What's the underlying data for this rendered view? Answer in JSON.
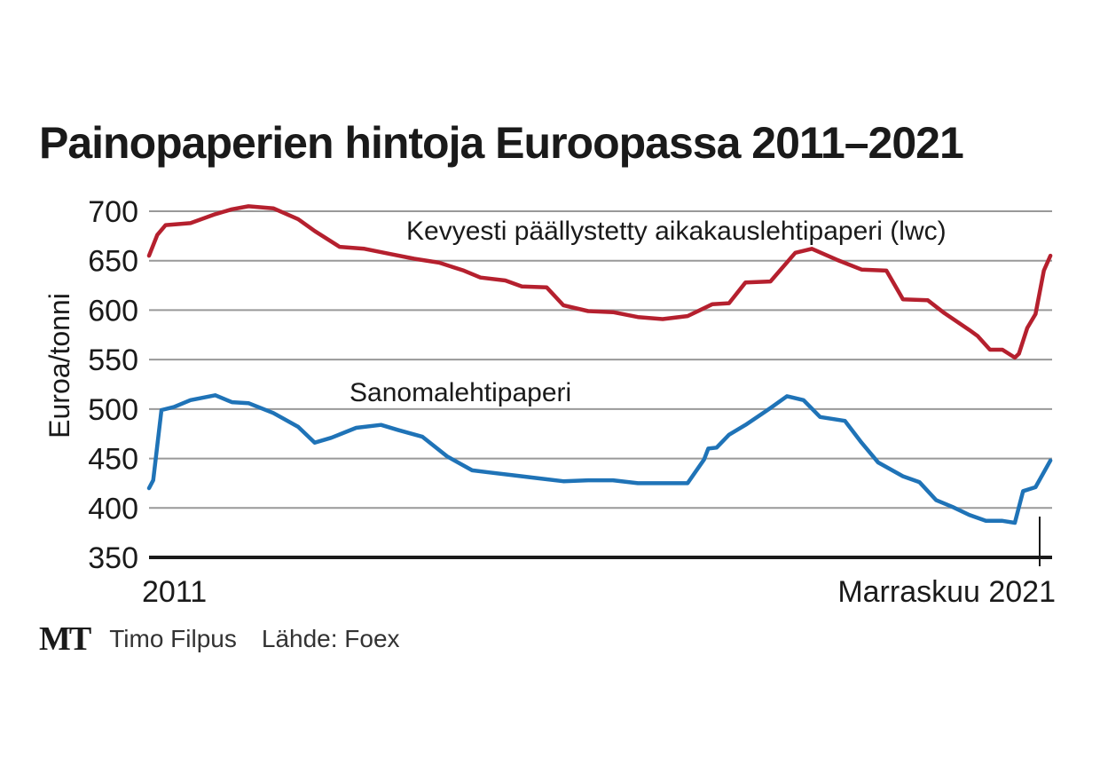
{
  "title": "Painopaperien hintoja Euroopassa 2011–2021",
  "footer": {
    "logo": "MT",
    "author": "Timo Filpus",
    "source": "Lähde: Foex"
  },
  "colors": {
    "lwc": "#b5202e",
    "news": "#1f73b7",
    "grid": "#999999",
    "axis": "#1a1a1a"
  },
  "chart_data": {
    "type": "line",
    "ylabel": "Euroa/tonni",
    "ylim": [
      350,
      700
    ],
    "yticks": [
      350,
      400,
      450,
      500,
      550,
      600,
      650,
      700
    ],
    "xlim": [
      2011.0,
      2021.9
    ],
    "x_tick_labels": [
      "2011",
      "Marraskuu 2021"
    ],
    "grid": true,
    "series": [
      {
        "name": "Kevyesti päällystetty aikakauslehtipaperi (lwc)",
        "x": [
          2011.0,
          2011.1,
          2011.2,
          2011.5,
          2011.8,
          2012.0,
          2012.2,
          2012.5,
          2012.8,
          2013.0,
          2013.3,
          2013.6,
          2013.9,
          2014.2,
          2014.5,
          2014.8,
          2015.0,
          2015.3,
          2015.5,
          2015.8,
          2016.0,
          2016.3,
          2016.6,
          2016.9,
          2017.2,
          2017.5,
          2017.8,
          2018.0,
          2018.2,
          2018.5,
          2018.8,
          2019.0,
          2019.3,
          2019.6,
          2019.9,
          2020.1,
          2020.4,
          2020.6,
          2020.9,
          2021.0,
          2021.15,
          2021.3,
          2021.45,
          2021.5,
          2021.6,
          2021.7,
          2021.8,
          2021.88
        ],
        "values": [
          655,
          676,
          686,
          688,
          697,
          702,
          705,
          703,
          692,
          680,
          664,
          662,
          657,
          652,
          648,
          640,
          633,
          630,
          624,
          623,
          605,
          599,
          598,
          593,
          591,
          594,
          606,
          607,
          628,
          629,
          658,
          662,
          651,
          641,
          640,
          611,
          610,
          597,
          580,
          574,
          560,
          560,
          552,
          556,
          582,
          596,
          640,
          655
        ]
      },
      {
        "name": "Sanomalehtipaperi",
        "x": [
          2011.0,
          2011.05,
          2011.15,
          2011.3,
          2011.5,
          2011.8,
          2012.0,
          2012.2,
          2012.5,
          2012.8,
          2013.0,
          2013.2,
          2013.5,
          2013.8,
          2014.0,
          2014.3,
          2014.6,
          2014.9,
          2015.1,
          2015.4,
          2015.7,
          2016.0,
          2016.3,
          2016.6,
          2016.9,
          2017.2,
          2017.5,
          2017.7,
          2017.75,
          2017.85,
          2018.0,
          2018.2,
          2018.5,
          2018.7,
          2018.9,
          2019.1,
          2019.4,
          2019.6,
          2019.8,
          2020.1,
          2020.3,
          2020.5,
          2020.7,
          2020.9,
          2021.1,
          2021.3,
          2021.45,
          2021.55,
          2021.7,
          2021.88
        ],
        "values": [
          420,
          428,
          499,
          502,
          509,
          514,
          507,
          506,
          496,
          482,
          466,
          471,
          481,
          484,
          479,
          472,
          452,
          438,
          436,
          433,
          430,
          427,
          428,
          428,
          425,
          425,
          425,
          449,
          460,
          461,
          474,
          484,
          501,
          513,
          509,
          492,
          488,
          466,
          446,
          432,
          426,
          408,
          401,
          393,
          387,
          387,
          385,
          417,
          421,
          448
        ]
      }
    ]
  }
}
